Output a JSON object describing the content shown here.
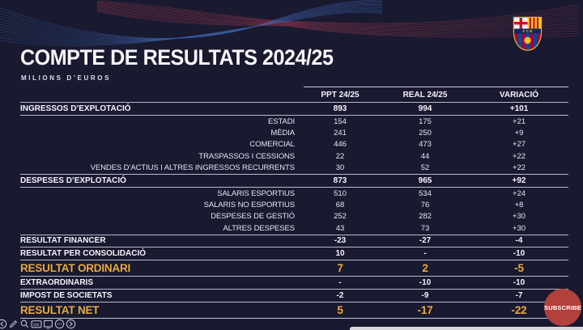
{
  "header": {
    "title": "COMPTE DE RESULTATS 2024/25",
    "subtitle": "MILIONS D’EUROS",
    "logo": "fc-barcelona-crest"
  },
  "chart_data": {
    "type": "table",
    "title": "COMPTE DE RESULTATS 2024/25",
    "subtitle": "MILIONS D’EUROS",
    "unit": "millions of euros",
    "columns": [
      "PPT 24/25",
      "REAL 24/25",
      "VARIACIÓ"
    ],
    "rows": [
      {
        "label": "INGRESSOS D’EXPLOTACIÓ",
        "ppt": "893",
        "real": "994",
        "variacio": "+101",
        "style": "total"
      },
      {
        "label": "ESTADI",
        "ppt": "154",
        "real": "175",
        "variacio": "+21",
        "style": "sub"
      },
      {
        "label": "MÈDIA",
        "ppt": "241",
        "real": "250",
        "variacio": "+9",
        "style": "sub"
      },
      {
        "label": "COMERCIAL",
        "ppt": "446",
        "real": "473",
        "variacio": "+27",
        "style": "sub"
      },
      {
        "label": "TRASPASSOS I CESSIONS",
        "ppt": "22",
        "real": "44",
        "variacio": "+22",
        "style": "sub"
      },
      {
        "label": "VENDES D’ACTIUS I ALTRES INGRESSOS RECURRENTS",
        "ppt": "30",
        "real": "52",
        "variacio": "+22",
        "style": "sub"
      },
      {
        "label": "DESPESES D’EXPLOTACIÓ",
        "ppt": "873",
        "real": "965",
        "variacio": "+92",
        "style": "total"
      },
      {
        "label": "SALARIS ESPORTIUS",
        "ppt": "510",
        "real": "534",
        "variacio": "+24",
        "style": "sub"
      },
      {
        "label": "SALARIS NO ESPORTIUS",
        "ppt": "68",
        "real": "76",
        "variacio": "+8",
        "style": "sub"
      },
      {
        "label": "DESPESES DE GESTIÓ",
        "ppt": "252",
        "real": "282",
        "variacio": "+30",
        "style": "sub"
      },
      {
        "label": "ALTRES DESPESES",
        "ppt": "43",
        "real": "73",
        "variacio": "+30",
        "style": "sub"
      },
      {
        "label": "RESULTAT FINANCER",
        "ppt": "-23",
        "real": "-27",
        "variacio": "-4",
        "style": "total fin"
      },
      {
        "label": "RESULTAT PER CONSOLIDACIÓ",
        "ppt": "10",
        "real": "-",
        "variacio": "-10",
        "style": "total fin"
      },
      {
        "label": "RESULTAT ORDINARI",
        "ppt": "7",
        "real": "2",
        "variacio": "-5",
        "style": "highlight"
      },
      {
        "label": "EXTRAORDINARIS",
        "ppt": "-",
        "real": "-10",
        "variacio": "-10",
        "style": "total"
      },
      {
        "label": "IMPOST DE SOCIETATS",
        "ppt": "-2",
        "real": "-9",
        "variacio": "-7",
        "style": "total"
      },
      {
        "label": "RESULTAT NET",
        "ppt": "5",
        "real": "-17",
        "variacio": "-22",
        "style": "highlight"
      }
    ],
    "layout": {
      "grid": "horizontal rules around summary rows",
      "legend": "none"
    }
  },
  "subscribe": {
    "label": "SUBSCRIBE",
    "color": "#b2403b"
  },
  "toolbar": {
    "icons": [
      "back-circle-icon",
      "pencil-icon",
      "magnifier-icon",
      "captions-icon",
      "display-icon",
      "more-circle-icon",
      "forward-circle-icon"
    ]
  },
  "colors": {
    "background": "#191a30",
    "accent_yellow": "#e9a93d",
    "text": "#f2f3f9",
    "rule_line": "#d4d7e6",
    "wave_blue": "#3c63ae",
    "wave_red": "#b43e55",
    "subscribe_red": "#b2403b"
  }
}
